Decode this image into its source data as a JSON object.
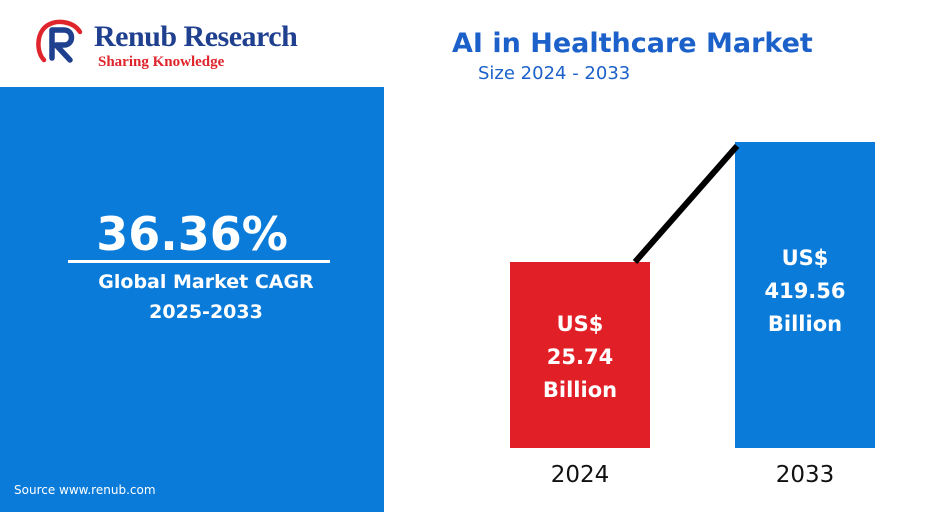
{
  "brand": {
    "name": "Renub Research",
    "tagline": "Sharing Knowledge"
  },
  "header": {
    "title": "AI in Healthcare Market",
    "subtitle": "Size 2024 - 2033"
  },
  "cagr": {
    "value": "36.36%",
    "label_line1": "Global Market CAGR",
    "label_line2": "2025-2033"
  },
  "source": "Source  www.renub.com",
  "colors": {
    "panel": "#0a7bd9",
    "bar_2024": "#e01f26",
    "bar_2033": "#0a7bd9",
    "brand_blue": "#1f3f8f",
    "title_blue": "#1b61c9",
    "brand_red": "#e0242b"
  },
  "icons": {
    "logo": "renub-r-logo-icon"
  },
  "chart_data": {
    "type": "bar",
    "categories": [
      "2024",
      "2033"
    ],
    "values": [
      25.74,
      419.56
    ],
    "unit": "US$ Billion",
    "bar_labels": [
      [
        "US$",
        "25.74",
        "Billion"
      ],
      [
        "US$",
        "419.56",
        "Billion"
      ]
    ],
    "connector_line": true,
    "grid": false,
    "legend": "none"
  }
}
